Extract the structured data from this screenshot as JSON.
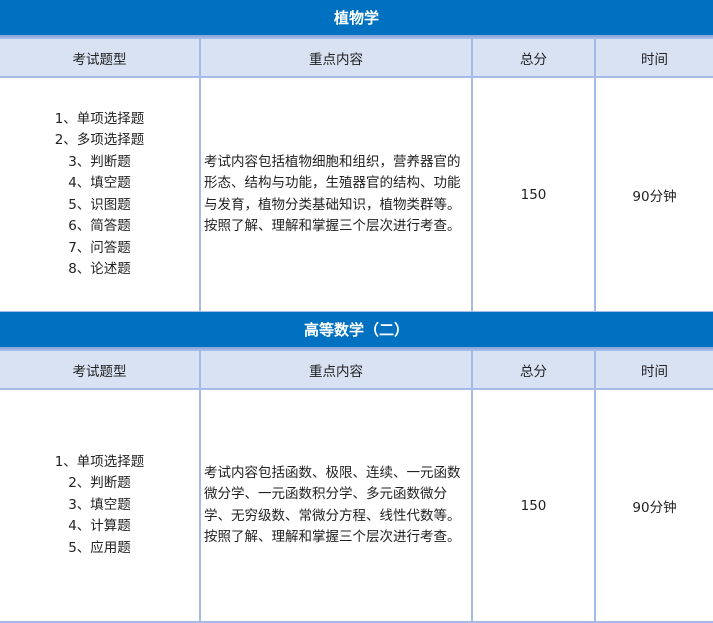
{
  "sections": [
    {
      "title": "植物学",
      "headers": [
        "考试题型",
        "重点内容",
        "总分",
        "时间"
      ],
      "types": [
        "1、单项选择题",
        "2、多项选择题",
        "3、判断题",
        "4、填空题",
        "5、识图题",
        "6、简答题",
        "7、问答题",
        "8、论述题"
      ],
      "content": "考试内容包括植物细胞和组织，营养器官的形态、结构与功能，生殖器官的结构、功能与发育，植物分类基础知识，植物类群等。按照了解、理解和掌握三个层次进行考查。",
      "score": "150",
      "time": "90分钟"
    },
    {
      "title": "高等数学（二）",
      "headers": [
        "考试题型",
        "重点内容",
        "总分",
        "时间"
      ],
      "types": [
        "1、单项选择题",
        "2、判断题",
        "3、填空题",
        "4、计算题",
        "5、应用题"
      ],
      "content": "考试内容包括函数、极限、连续、一元函数微分学、一元函数积分学、多元函数微分学、无穷级数、常微分方程、线性代数等。按照了解、理解和掌握三个层次进行考查。",
      "score": "150",
      "time": "90分钟"
    }
  ],
  "colors": {
    "title_bg": "#0070c0",
    "header_bg": "#d9e2f3",
    "border": "#a4bbe8"
  }
}
